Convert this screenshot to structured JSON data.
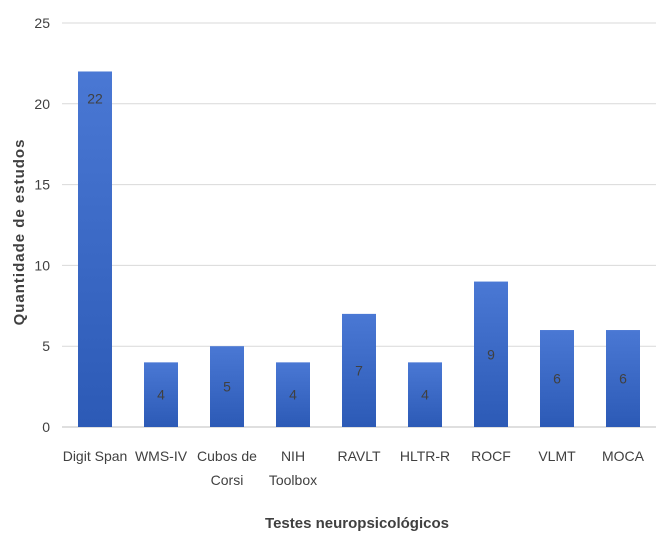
{
  "chart_data": {
    "type": "bar",
    "xlabel": "Testes neuropsicológicos",
    "ylabel": "Quantidade de estudos",
    "categories": [
      [
        "Digit Span"
      ],
      [
        "WMS-IV"
      ],
      [
        "Cubos de",
        "Corsi"
      ],
      [
        "NIH",
        "Toolbox"
      ],
      [
        "RAVLT"
      ],
      [
        "HLTR-R"
      ],
      [
        "ROCF"
      ],
      [
        "VLMT"
      ],
      [
        "MOCA"
      ]
    ],
    "values": [
      22,
      4,
      5,
      4,
      7,
      4,
      9,
      6,
      6
    ],
    "ylim": [
      0,
      25
    ],
    "yticks": [
      0,
      5,
      10,
      15,
      20,
      25
    ],
    "grid": true,
    "bar_color_top": "#4A78D4",
    "bar_color_bottom": "#2C5AB6"
  }
}
